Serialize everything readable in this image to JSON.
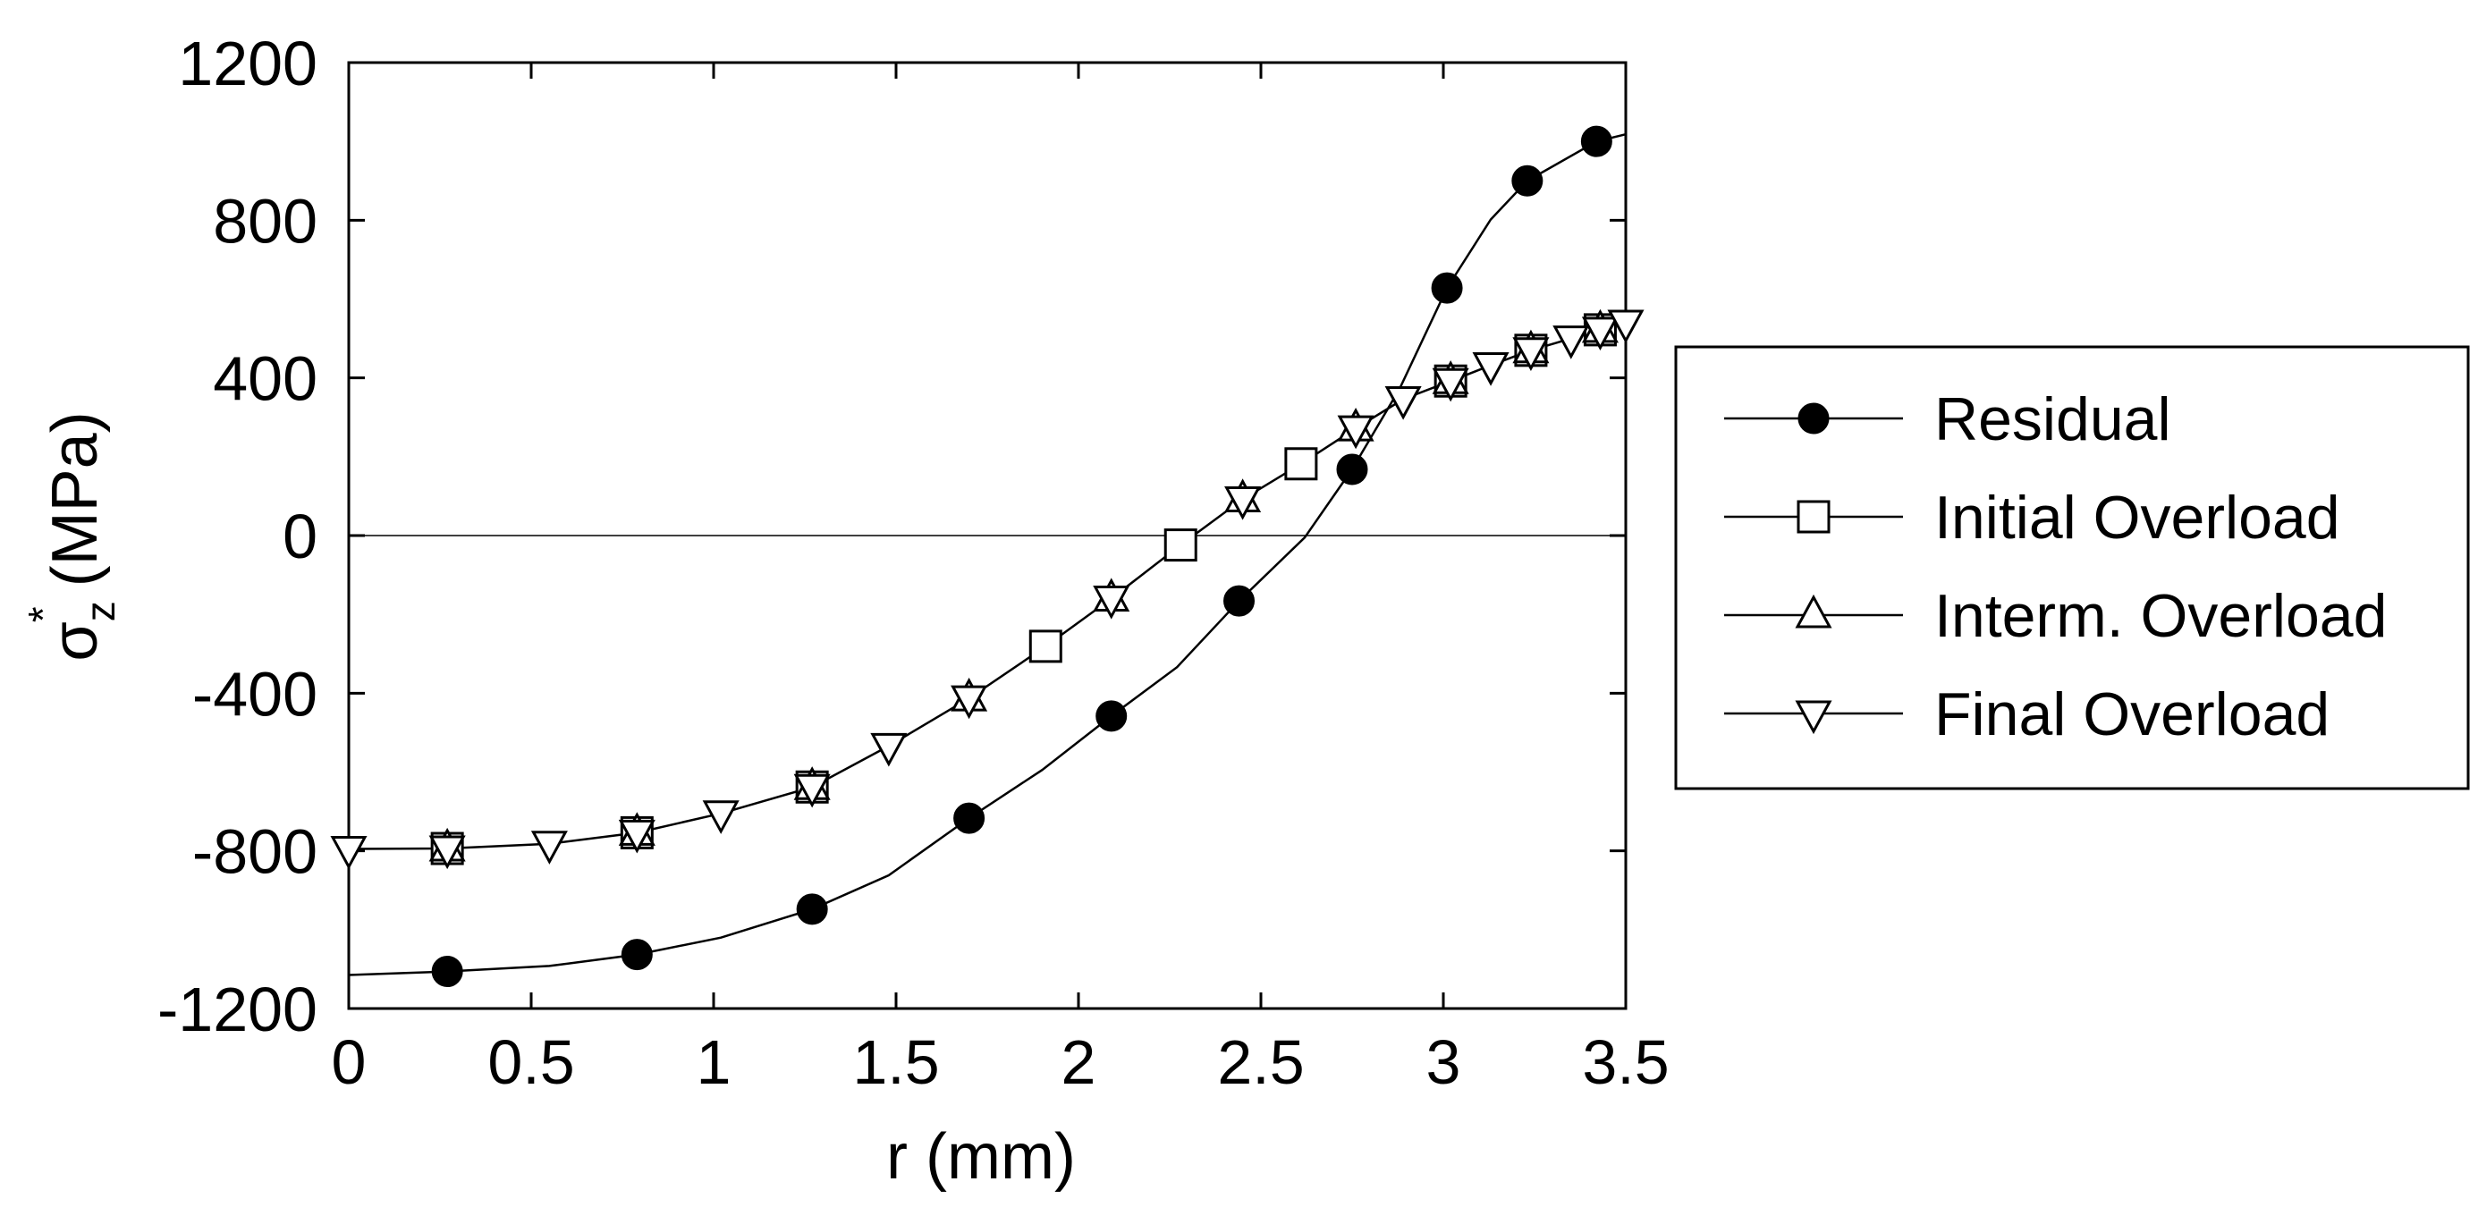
{
  "chart_data": {
    "type": "line",
    "title": "",
    "xlabel": "r (mm)",
    "ylabel": {
      "symbol": "σ",
      "subscript": "z",
      "superscript": "*",
      "units": "(MPa)"
    },
    "xlim": [
      0,
      3.5
    ],
    "ylim": [
      -1200,
      1200
    ],
    "x_ticks": [
      0,
      0.5,
      1,
      1.5,
      2,
      2.5,
      3,
      3.5
    ],
    "x_tick_labels": [
      "0",
      "0.5",
      "1",
      "1.5",
      "2",
      "2.5",
      "3",
      "3.5"
    ],
    "y_ticks": [
      -1200,
      -800,
      -400,
      0,
      400,
      800,
      1200
    ],
    "y_tick_labels": [
      "-1200",
      "-800",
      "-400",
      "0",
      "400",
      "800",
      "1200"
    ],
    "zero_line": true,
    "grid": false,
    "legend_position": "right-outside",
    "series": [
      {
        "name": "Residual",
        "marker": "filled-circle",
        "line": [
          [
            0,
            -1115
          ],
          [
            0.27,
            -1106
          ],
          [
            0.55,
            -1092
          ],
          [
            0.79,
            -1063
          ],
          [
            1.02,
            -1020
          ],
          [
            1.27,
            -948
          ],
          [
            1.48,
            -862
          ],
          [
            1.7,
            -717
          ],
          [
            1.9,
            -595
          ],
          [
            2.09,
            -458
          ],
          [
            2.27,
            -334
          ],
          [
            2.44,
            -166
          ],
          [
            2.62,
            -5
          ],
          [
            2.75,
            168
          ],
          [
            2.88,
            372
          ],
          [
            3.01,
            628
          ],
          [
            3.13,
            802
          ],
          [
            3.23,
            900
          ],
          [
            3.42,
            1000
          ],
          [
            3.5,
            1018
          ]
        ],
        "points": [
          [
            0.27,
            -1106
          ],
          [
            0.79,
            -1063
          ],
          [
            1.27,
            -948
          ],
          [
            1.7,
            -717
          ],
          [
            2.09,
            -458
          ],
          [
            2.44,
            -166
          ],
          [
            2.75,
            168
          ],
          [
            3.01,
            628
          ],
          [
            3.23,
            900
          ],
          [
            3.42,
            1000
          ]
        ]
      },
      {
        "name": "Initial Overload",
        "marker": "open-square",
        "line": [
          [
            0,
            -795
          ],
          [
            0.27,
            -794
          ],
          [
            0.55,
            -782
          ],
          [
            0.79,
            -754
          ],
          [
            1.02,
            -705
          ],
          [
            1.27,
            -638
          ],
          [
            1.48,
            -534
          ],
          [
            1.7,
            -413
          ],
          [
            1.91,
            -281
          ],
          [
            2.09,
            -160
          ],
          [
            2.28,
            -24
          ],
          [
            2.45,
            92
          ],
          [
            2.61,
            182
          ],
          [
            2.76,
            272
          ],
          [
            2.89,
            346
          ],
          [
            3.02,
            392
          ],
          [
            3.13,
            432
          ],
          [
            3.24,
            470
          ],
          [
            3.35,
            500
          ],
          [
            3.43,
            522
          ],
          [
            3.5,
            540
          ]
        ],
        "points": [
          [
            0.27,
            -794
          ],
          [
            0.79,
            -754
          ],
          [
            1.27,
            -638
          ],
          [
            1.91,
            -281
          ],
          [
            2.28,
            -24
          ],
          [
            2.61,
            182
          ],
          [
            3.02,
            392
          ],
          [
            3.24,
            470
          ],
          [
            3.43,
            522
          ]
        ]
      },
      {
        "name": "Interm. Overload",
        "marker": "open-triangle-up",
        "line": [],
        "points": [
          [
            0.27,
            -794
          ],
          [
            0.79,
            -754
          ],
          [
            1.27,
            -638
          ],
          [
            1.7,
            -413
          ],
          [
            2.09,
            -160
          ],
          [
            2.45,
            92
          ],
          [
            2.76,
            272
          ],
          [
            3.02,
            392
          ],
          [
            3.24,
            470
          ],
          [
            3.43,
            522
          ]
        ]
      },
      {
        "name": "Final Overload",
        "marker": "open-triangle-down",
        "line": [],
        "points": [
          [
            0,
            -795
          ],
          [
            0.27,
            -794
          ],
          [
            0.55,
            -782
          ],
          [
            0.79,
            -754
          ],
          [
            1.02,
            -705
          ],
          [
            1.27,
            -638
          ],
          [
            1.48,
            -534
          ],
          [
            1.7,
            -413
          ],
          [
            2.09,
            -160
          ],
          [
            2.45,
            92
          ],
          [
            2.76,
            272
          ],
          [
            2.89,
            346
          ],
          [
            3.02,
            392
          ],
          [
            3.13,
            432
          ],
          [
            3.24,
            470
          ],
          [
            3.35,
            500
          ],
          [
            3.43,
            522
          ],
          [
            3.5,
            540
          ]
        ]
      }
    ]
  }
}
